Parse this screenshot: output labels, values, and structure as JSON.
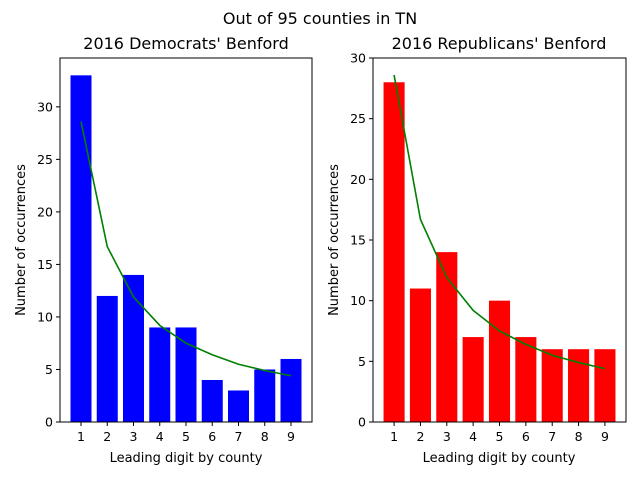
{
  "suptitle": "Out of 95 counties in TN",
  "chart_data": [
    {
      "type": "bar",
      "title": "2016 Democrats' Benford",
      "xlabel": "Leading digit by county",
      "ylabel": "Number of occurrences",
      "categories": [
        "1",
        "2",
        "3",
        "4",
        "5",
        "6",
        "7",
        "8",
        "9"
      ],
      "ylim": [
        0,
        34.65
      ],
      "yticks": [
        0,
        5,
        10,
        15,
        20,
        25,
        30
      ],
      "bar_color": "#0000ff",
      "series": [
        {
          "type": "bar",
          "values": [
            33,
            12,
            14,
            9,
            9,
            4,
            3,
            5,
            6
          ],
          "color": "#0000ff"
        },
        {
          "type": "line",
          "values": [
            28.6,
            16.7,
            11.9,
            9.2,
            7.5,
            6.4,
            5.5,
            4.9,
            4.4
          ],
          "color": "#008000"
        }
      ]
    },
    {
      "type": "bar",
      "title": "2016 Republicans' Benford",
      "xlabel": "Leading digit by county",
      "ylabel": "Number of occurrences",
      "categories": [
        "1",
        "2",
        "3",
        "4",
        "5",
        "6",
        "7",
        "8",
        "9"
      ],
      "ylim": [
        0,
        30
      ],
      "yticks": [
        0,
        5,
        10,
        15,
        20,
        25,
        30
      ],
      "bar_color": "#ff0000",
      "series": [
        {
          "type": "bar",
          "values": [
            28,
            11,
            14,
            7,
            10,
            7,
            6,
            6,
            6
          ],
          "color": "#ff0000"
        },
        {
          "type": "line",
          "values": [
            28.6,
            16.7,
            11.9,
            9.2,
            7.5,
            6.4,
            5.5,
            4.9,
            4.4
          ],
          "color": "#008000"
        }
      ]
    }
  ]
}
